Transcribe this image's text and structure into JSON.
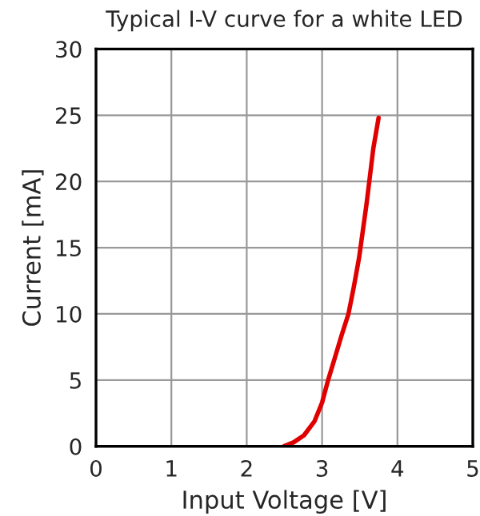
{
  "chart_data": {
    "type": "line",
    "title": "Typical I-V curve for a white LED",
    "xlabel": "Input Voltage [V]",
    "ylabel": "Current [mA]",
    "series": [
      {
        "color": "#e00000",
        "x": [
          2.49,
          2.62,
          2.76,
          2.9,
          3.0,
          3.08,
          3.17,
          3.26,
          3.35,
          3.42,
          3.49,
          3.59,
          3.68,
          3.75
        ],
        "values": [
          0,
          0.3,
          0.83,
          1.9,
          3.3,
          5.0,
          6.7,
          8.4,
          10.0,
          12.0,
          14.2,
          18.3,
          22.5,
          24.8
        ]
      }
    ],
    "xlim": [
      0,
      5
    ],
    "xticks": [
      0,
      1,
      2,
      3,
      4,
      5
    ],
    "ylim": [
      0,
      30
    ],
    "yticks": [
      0,
      5,
      10,
      15,
      20,
      25,
      30
    ],
    "grid": true,
    "marker": "none",
    "line_style": "solid"
  }
}
